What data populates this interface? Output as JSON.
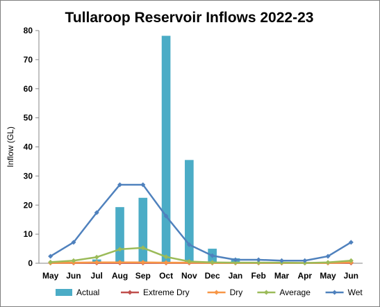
{
  "chart_data": {
    "type": "bar",
    "title": "Tullaroop Reservoir Inflows 2022-23",
    "xlabel": "",
    "ylabel": "Inflow (GL)",
    "ylim": [
      0,
      80
    ],
    "yticks": [
      0,
      10,
      20,
      30,
      40,
      50,
      60,
      70,
      80
    ],
    "grid": false,
    "legend_position": "bottom",
    "categories": [
      "May",
      "Jun",
      "Jul",
      "Aug",
      "Sep",
      "Oct",
      "Nov",
      "Dec",
      "Jan",
      "Feb",
      "Mar",
      "Apr",
      "May",
      "Jun"
    ],
    "bar_series": [
      {
        "name": "Actual",
        "color": "#4bacc6",
        "values": [
          0,
          0,
          1.3,
          19.3,
          22.5,
          78.2,
          35.5,
          5.0,
          1.7,
          null,
          null,
          null,
          null,
          null
        ]
      }
    ],
    "line_series": [
      {
        "name": "Extreme Dry",
        "color": "#c0504d",
        "marker": "diamond",
        "values": [
          0.1,
          0.1,
          0.1,
          0.1,
          0.1,
          0.1,
          0.1,
          0.1,
          0.1,
          0.1,
          0.1,
          0.1,
          0.1,
          0.1
        ]
      },
      {
        "name": "Dry",
        "color": "#f79646",
        "marker": "diamond",
        "values": [
          0.1,
          0.2,
          0.3,
          0.3,
          0.3,
          0.2,
          0.2,
          0.1,
          0.1,
          0.1,
          0.1,
          0.1,
          0.1,
          0.3
        ]
      },
      {
        "name": "Average",
        "color": "#9bbb59",
        "marker": "diamond",
        "values": [
          0.4,
          0.9,
          2.1,
          4.8,
          5.3,
          2.2,
          0.6,
          0.3,
          0.2,
          0.2,
          0.2,
          0.1,
          0.3,
          0.9
        ]
      },
      {
        "name": "Wet",
        "color": "#4f81bd",
        "marker": "diamond",
        "values": [
          2.4,
          7.2,
          17.4,
          27.0,
          27.0,
          16.2,
          6.4,
          2.6,
          1.2,
          1.2,
          0.9,
          0.9,
          2.4,
          7.2
        ]
      }
    ]
  }
}
